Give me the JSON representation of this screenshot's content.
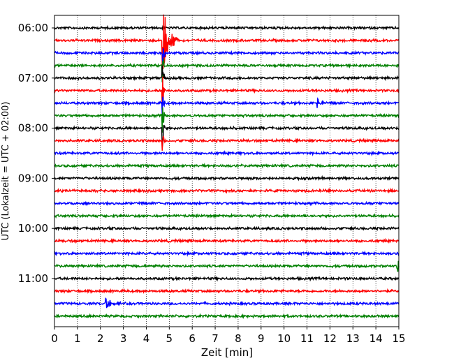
{
  "chart_data": {
    "type": "line",
    "title": "",
    "xlabel": "Zeit  [min]",
    "ylabel": "UTC (Lokalzeit = UTC + 02:00)",
    "xlim": [
      0,
      15
    ],
    "x_ticks": [
      "0",
      "1",
      "2",
      "3",
      "4",
      "5",
      "6",
      "7",
      "8",
      "9",
      "10",
      "11",
      "12",
      "13",
      "14",
      "15"
    ],
    "y_ticks": [
      "06:00",
      "07:00",
      "08:00",
      "09:00",
      "10:00",
      "11:00"
    ],
    "y_tick_traces": [
      0,
      4,
      8,
      12,
      16,
      20
    ],
    "grid": "vertical-dotted",
    "trace_colors": [
      "#000000",
      "#ff0000",
      "#0000ff",
      "#008000"
    ],
    "trace_count": 24,
    "trace_interval_minutes": 15,
    "events": [
      {
        "trace": 1,
        "minute": 4.72,
        "amplitude": 3.0,
        "duration_min": 0.7
      },
      {
        "trace": 2,
        "minute": 4.72,
        "amplitude": 1.5,
        "duration_min": 0.1
      },
      {
        "trace": 3,
        "minute": 4.72,
        "amplitude": 1.5,
        "duration_min": 0.1
      },
      {
        "trace": 4,
        "minute": 4.72,
        "amplitude": 1.5,
        "duration_min": 0.1
      },
      {
        "trace": 5,
        "minute": 4.72,
        "amplitude": 1.5,
        "duration_min": 0.1
      },
      {
        "trace": 6,
        "minute": 4.72,
        "amplitude": 1.5,
        "duration_min": 0.1
      },
      {
        "trace": 7,
        "minute": 4.72,
        "amplitude": 1.5,
        "duration_min": 0.1
      },
      {
        "trace": 8,
        "minute": 4.72,
        "amplitude": 1.5,
        "duration_min": 0.1
      },
      {
        "trace": 9,
        "minute": 4.72,
        "amplitude": 1.1,
        "duration_min": 0.1
      },
      {
        "trace": 6,
        "minute": 11.45,
        "amplitude": 0.45,
        "duration_min": 0.5
      },
      {
        "trace": 19,
        "minute": 14.95,
        "amplitude": 0.7,
        "duration_min": 0.1
      },
      {
        "trace": 22,
        "minute": 2.2,
        "amplitude": 0.55,
        "duration_min": 0.8
      }
    ]
  }
}
